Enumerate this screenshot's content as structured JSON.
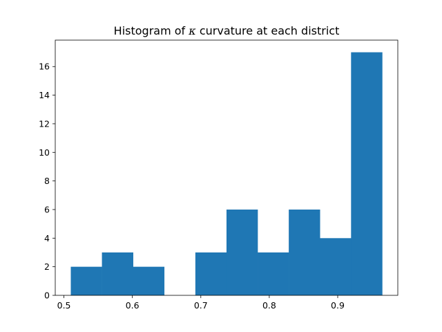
{
  "chart_data": {
    "type": "bar",
    "title_prefix": "Histogram of ",
    "title_symbol": "κ",
    "title_suffix": " curvature at each district",
    "xlabel": "",
    "ylabel": "",
    "bin_edges": [
      0.51,
      0.5555,
      0.601,
      0.6465,
      0.692,
      0.7375,
      0.783,
      0.8285,
      0.874,
      0.9195,
      0.965
    ],
    "values": [
      2,
      3,
      2,
      0,
      3,
      6,
      3,
      6,
      4,
      17
    ],
    "xlim": [
      0.4873,
      0.9878
    ],
    "ylim": [
      0,
      17.85
    ],
    "xticks": [
      0.5,
      0.6,
      0.7,
      0.8,
      0.9
    ],
    "xtick_labels": [
      "0.5",
      "0.6",
      "0.7",
      "0.8",
      "0.9"
    ],
    "yticks": [
      0,
      2,
      4,
      6,
      8,
      10,
      12,
      14,
      16
    ],
    "ytick_labels": [
      "0",
      "2",
      "4",
      "6",
      "8",
      "10",
      "12",
      "14",
      "16"
    ],
    "bar_color": "#1f77b4",
    "grid": false,
    "legend": "none"
  }
}
